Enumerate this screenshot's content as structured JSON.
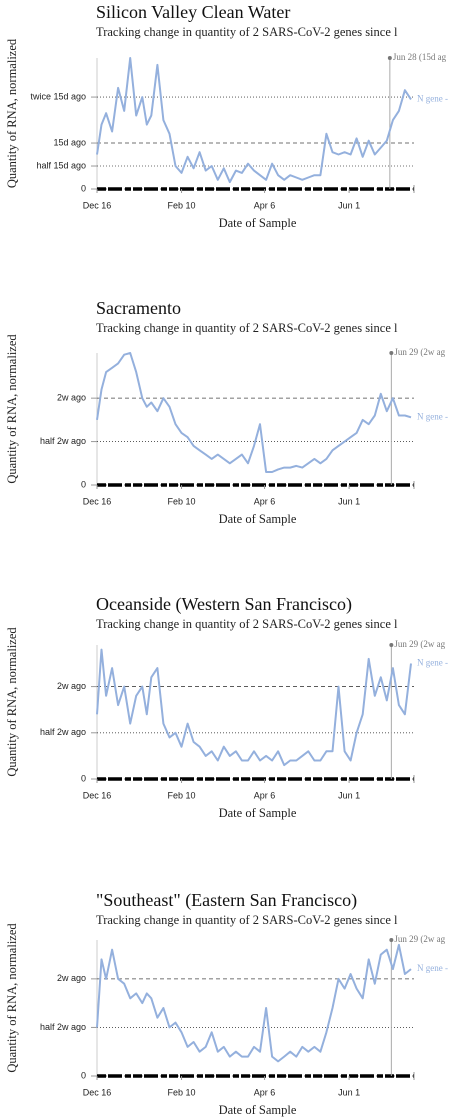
{
  "chart_data": [
    {
      "type": "line",
      "title": "Silicon Valley Clean Water",
      "subtitle": "Tracking change in quantity of 2 SARS-CoV-2 genes since l",
      "x_label": "Date of Sample",
      "y_label": "Quantity of RNA, normalized",
      "x": [
        0,
        3,
        6,
        10,
        14,
        18,
        22,
        26,
        30,
        33,
        36,
        40,
        44,
        48,
        52,
        56,
        60,
        64,
        68,
        72,
        76,
        80,
        84,
        88,
        92,
        96,
        100,
        104,
        108,
        112,
        116,
        120,
        124,
        128,
        132,
        136,
        140,
        144,
        148,
        152,
        156,
        160,
        164,
        168,
        172,
        176,
        180,
        184,
        188,
        192,
        196,
        200,
        204,
        208
      ],
      "series": [
        {
          "name": "N gene -",
          "color": "#94b0dd",
          "values": [
            0.75,
            1.4,
            1.65,
            1.25,
            2.2,
            1.7,
            2.85,
            1.6,
            2.0,
            1.4,
            1.6,
            2.7,
            1.5,
            1.2,
            0.5,
            0.35,
            0.7,
            0.45,
            0.8,
            0.4,
            0.5,
            0.2,
            0.45,
            0.15,
            0.4,
            0.35,
            0.55,
            0.4,
            0.3,
            0.2,
            0.55,
            0.3,
            0.2,
            0.3,
            0.25,
            0.2,
            0.25,
            0.3,
            0.3,
            1.2,
            0.8,
            0.75,
            0.8,
            0.75,
            1.1,
            0.7,
            1.05,
            0.75,
            0.9,
            1.05,
            1.5,
            1.7,
            2.15,
            1.95
          ]
        }
      ],
      "xlim": [
        0,
        210
      ],
      "xticks": [
        {
          "value": 0,
          "label": "Dec 16"
        },
        {
          "value": 56,
          "label": "Feb 10"
        },
        {
          "value": 111,
          "label": "Apr 6"
        },
        {
          "value": 167,
          "label": "Jun 1"
        }
      ],
      "ylim": [
        0,
        2.85
      ],
      "yticks": [
        0,
        {
          "value": 0.5,
          "label": "half 15d ago"
        },
        {
          "value": 1,
          "label": "15d ago"
        },
        {
          "value": 2,
          "label": "twice 15d ago"
        }
      ],
      "annotation": {
        "x": 194,
        "label": "Jun 28 (15d ag"
      }
    },
    {
      "type": "line",
      "title": "Sacramento",
      "subtitle": "Tracking change in quantity of 2 SARS-CoV-2 genes since l",
      "x_label": "Date of Sample",
      "y_label": "Quantity of RNA, normalized",
      "x": [
        0,
        3,
        6,
        10,
        14,
        18,
        22,
        26,
        30,
        33,
        36,
        40,
        44,
        48,
        52,
        56,
        60,
        64,
        68,
        72,
        76,
        80,
        84,
        88,
        92,
        96,
        100,
        104,
        108,
        112,
        116,
        120,
        124,
        128,
        132,
        136,
        140,
        144,
        148,
        152,
        156,
        160,
        164,
        168,
        172,
        176,
        180,
        184,
        188,
        192,
        196,
        200,
        204,
        208
      ],
      "series": [
        {
          "name": "N gene -",
          "color": "#94b0dd",
          "values": [
            0.75,
            1.1,
            1.3,
            1.35,
            1.4,
            1.5,
            1.52,
            1.3,
            1.0,
            0.9,
            0.95,
            0.85,
            1.0,
            0.9,
            0.7,
            0.6,
            0.55,
            0.45,
            0.4,
            0.35,
            0.3,
            0.35,
            0.3,
            0.25,
            0.3,
            0.35,
            0.25,
            0.45,
            0.7,
            0.15,
            0.15,
            0.18,
            0.2,
            0.2,
            0.22,
            0.2,
            0.25,
            0.3,
            0.25,
            0.3,
            0.4,
            0.45,
            0.5,
            0.55,
            0.6,
            0.75,
            0.7,
            0.8,
            1.05,
            0.85,
            1.0,
            0.8,
            0.8,
            0.78
          ]
        }
      ],
      "xlim": [
        0,
        210
      ],
      "xticks": [
        {
          "value": 0,
          "label": "Dec 16"
        },
        {
          "value": 56,
          "label": "Feb 10"
        },
        {
          "value": 111,
          "label": "Apr 6"
        },
        {
          "value": 167,
          "label": "Jun 1"
        }
      ],
      "ylim": [
        0,
        1.52
      ],
      "yticks": [
        0,
        {
          "value": 0.5,
          "label": "half 2w ago"
        },
        {
          "value": 1,
          "label": "2w ago"
        }
      ],
      "annotation": {
        "x": 195,
        "label": "Jun 29 (2w ag"
      }
    },
    {
      "type": "line",
      "title": "Oceanside (Western San Francisco)",
      "subtitle": "Tracking change in quantity of 2 SARS-CoV-2 genes since l",
      "x_label": "Date of Sample",
      "y_label": "Quantity of RNA, normalized",
      "x": [
        0,
        3,
        6,
        10,
        14,
        18,
        22,
        26,
        30,
        33,
        36,
        40,
        44,
        48,
        52,
        56,
        60,
        64,
        68,
        72,
        76,
        80,
        84,
        88,
        92,
        96,
        100,
        104,
        108,
        112,
        116,
        120,
        124,
        128,
        132,
        136,
        140,
        144,
        148,
        152,
        156,
        160,
        164,
        168,
        172,
        176,
        180,
        184,
        188,
        192,
        196,
        200,
        204,
        208
      ],
      "series": [
        {
          "name": "N gene -",
          "color": "#94b0dd",
          "values": [
            0.7,
            1.4,
            0.9,
            1.2,
            0.8,
            1.0,
            0.6,
            0.9,
            1.0,
            0.7,
            1.1,
            1.2,
            0.6,
            0.45,
            0.5,
            0.35,
            0.6,
            0.4,
            0.35,
            0.25,
            0.3,
            0.2,
            0.35,
            0.25,
            0.3,
            0.2,
            0.2,
            0.3,
            0.2,
            0.25,
            0.2,
            0.3,
            0.15,
            0.2,
            0.2,
            0.25,
            0.3,
            0.2,
            0.2,
            0.3,
            0.3,
            1.0,
            0.3,
            0.2,
            0.5,
            0.7,
            1.3,
            0.9,
            1.1,
            0.85,
            1.2,
            0.8,
            0.7,
            1.25
          ]
        }
      ],
      "xlim": [
        0,
        210
      ],
      "xticks": [
        {
          "value": 0,
          "label": "Dec 16"
        },
        {
          "value": 56,
          "label": "Feb 10"
        },
        {
          "value": 111,
          "label": "Apr 6"
        },
        {
          "value": 167,
          "label": "Jun 1"
        }
      ],
      "ylim": [
        0,
        1.45
      ],
      "yticks": [
        0,
        {
          "value": 0.5,
          "label": "half 2w ago"
        },
        {
          "value": 1,
          "label": "2w ago"
        }
      ],
      "annotation": {
        "x": 195,
        "label": "Jun 29 (2w ag"
      }
    },
    {
      "type": "line",
      "title": "\"Southeast\" (Eastern San Francisco)",
      "subtitle": "Tracking change in quantity of 2 SARS-CoV-2 genes since l",
      "x_label": "Date of Sample",
      "y_label": "Quantity of RNA, normalized",
      "x": [
        0,
        3,
        6,
        10,
        14,
        18,
        22,
        26,
        30,
        33,
        36,
        40,
        44,
        48,
        52,
        56,
        60,
        64,
        68,
        72,
        76,
        80,
        84,
        88,
        92,
        96,
        100,
        104,
        108,
        112,
        116,
        120,
        124,
        128,
        132,
        136,
        140,
        144,
        148,
        152,
        156,
        160,
        164,
        168,
        172,
        176,
        180,
        184,
        188,
        192,
        196,
        200,
        204,
        208
      ],
      "series": [
        {
          "name": "N gene -",
          "color": "#94b0dd",
          "values": [
            0.5,
            1.2,
            1.0,
            1.3,
            1.0,
            0.95,
            0.8,
            0.85,
            0.75,
            0.85,
            0.8,
            0.6,
            0.7,
            0.5,
            0.55,
            0.45,
            0.3,
            0.35,
            0.25,
            0.3,
            0.45,
            0.25,
            0.3,
            0.2,
            0.25,
            0.2,
            0.2,
            0.3,
            0.25,
            0.7,
            0.2,
            0.15,
            0.2,
            0.25,
            0.2,
            0.3,
            0.25,
            0.3,
            0.25,
            0.45,
            0.7,
            1.0,
            0.9,
            1.05,
            0.9,
            0.8,
            1.2,
            0.95,
            1.25,
            1.3,
            1.1,
            1.35,
            1.05,
            1.1
          ]
        }
      ],
      "xlim": [
        0,
        210
      ],
      "xticks": [
        {
          "value": 0,
          "label": "Dec 16"
        },
        {
          "value": 56,
          "label": "Feb 10"
        },
        {
          "value": 111,
          "label": "Apr 6"
        },
        {
          "value": 167,
          "label": "Jun 1"
        }
      ],
      "ylim": [
        0,
        1.4
      ],
      "yticks": [
        0,
        {
          "value": 0.5,
          "label": "half 2w ago"
        },
        {
          "value": 1,
          "label": "2w ago"
        }
      ],
      "annotation": {
        "x": 195,
        "label": "Jun 29 (2w ag"
      }
    }
  ]
}
